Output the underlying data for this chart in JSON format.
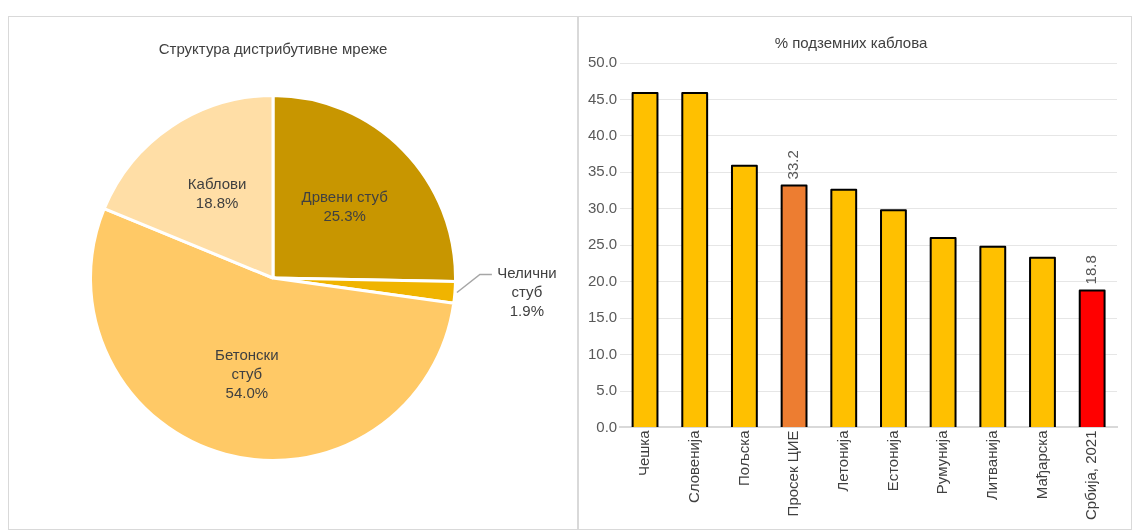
{
  "chart_data": [
    {
      "type": "pie",
      "title": "Структура дистрибутивне мреже",
      "categories": [
        "Дрвени стуб",
        "Челични стуб",
        "Бетонски стуб",
        "Каблови"
      ],
      "values": [
        25.3,
        1.9,
        54.0,
        18.8
      ],
      "colors": [
        "#c89600",
        "#f0b400",
        "#ffc966",
        "#ffdea6"
      ],
      "value_labels": [
        "25.3%",
        "1.9%",
        "54.0%",
        "18.8%"
      ],
      "legend": false
    },
    {
      "type": "bar",
      "title": "% подземних каблова",
      "categories": [
        "Чешка",
        "Словенија",
        "Пољска",
        "Просек ЦИЕ",
        "Летонија",
        "Естонија",
        "Румунија",
        "Литванија",
        "Мађарска",
        "Србија, 2021"
      ],
      "values": [
        45.9,
        45.9,
        35.9,
        33.2,
        32.6,
        29.8,
        26.0,
        24.8,
        23.3,
        18.8
      ],
      "colors": [
        "#ffc000",
        "#ffc000",
        "#ffc000",
        "#ed7d31",
        "#ffc000",
        "#ffc000",
        "#ffc000",
        "#ffc000",
        "#ffc000",
        "#ff0000"
      ],
      "value_labels": [
        null,
        null,
        null,
        "33.2",
        null,
        null,
        null,
        null,
        null,
        "18.8"
      ],
      "ylim": [
        0,
        50
      ],
      "yticks": [
        {
          "value": 0,
          "label": "0.0"
        },
        {
          "value": 5,
          "label": "5.0"
        },
        {
          "value": 10,
          "label": "10.0"
        },
        {
          "value": 15,
          "label": "15.0"
        },
        {
          "value": 20,
          "label": "20.0"
        },
        {
          "value": 25,
          "label": "25.0"
        },
        {
          "value": 30,
          "label": "30.0"
        },
        {
          "value": 35,
          "label": "35.0"
        },
        {
          "value": 40,
          "label": "40.0"
        },
        {
          "value": 45,
          "label": "45.0"
        },
        {
          "value": 50,
          "label": "50.0"
        }
      ],
      "grid": "y",
      "legend": false
    }
  ]
}
